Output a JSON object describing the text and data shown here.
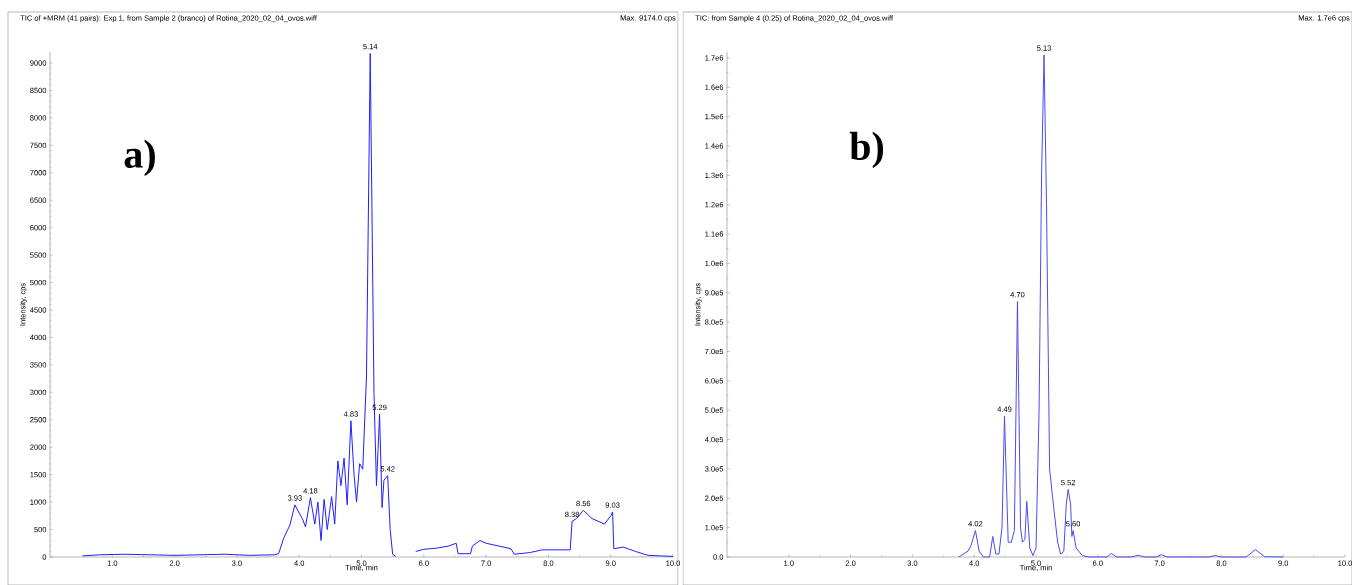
{
  "chart_data": [
    {
      "type": "line",
      "title": "TIC of +MRM (41 pairs): Exp 1, from Sample 2 (branco) of Rotina_2020_02_04_ovos.wiff",
      "xlabel": "Time, min",
      "ylabel": "Intensity, cps",
      "annotations": [
        "Max. 9174.0 cps",
        "a)",
        {
          "text": "3.93",
          "x": 3.93,
          "y": 950
        },
        {
          "text": "4.18",
          "x": 4.18,
          "y": 1080
        },
        {
          "text": "4.83",
          "x": 4.83,
          "y": 2480
        },
        {
          "text": "5.14",
          "x": 5.14,
          "y": 9174
        },
        {
          "text": "5.29",
          "x": 5.29,
          "y": 2600
        },
        {
          "text": "5.42",
          "x": 5.42,
          "y": 1480
        },
        {
          "text": "8.38",
          "x": 8.38,
          "y": 650
        },
        {
          "text": "8.56",
          "x": 8.56,
          "y": 850
        },
        {
          "text": "9.03",
          "x": 9.03,
          "y": 820
        }
      ],
      "x": [
        0.52,
        0.8,
        1.2,
        1.6,
        2.0,
        2.4,
        2.8,
        3.2,
        3.6,
        3.67,
        3.75,
        3.85,
        3.93,
        4.0,
        4.05,
        4.1,
        4.18,
        4.25,
        4.3,
        4.35,
        4.4,
        4.45,
        4.52,
        4.57,
        4.62,
        4.67,
        4.72,
        4.77,
        4.83,
        4.88,
        4.92,
        4.97,
        5.02,
        5.08,
        5.14,
        5.2,
        5.24,
        5.29,
        5.33,
        5.36,
        5.42,
        5.46,
        5.5,
        5.55,
        5.7,
        5.87,
        6.0,
        6.2,
        6.4,
        6.52,
        6.55,
        6.75,
        6.78,
        6.9,
        7.0,
        7.2,
        7.4,
        7.45,
        7.7,
        7.9,
        8.35,
        8.38,
        8.45,
        8.56,
        8.7,
        8.8,
        8.9,
        9.0,
        9.03,
        9.05,
        9.2,
        9.4,
        9.6,
        9.8,
        10.0
      ],
      "values": [
        20,
        40,
        50,
        40,
        30,
        40,
        50,
        30,
        40,
        60,
        340,
        580,
        950,
        800,
        700,
        550,
        1080,
        600,
        1000,
        300,
        1050,
        500,
        1100,
        600,
        1750,
        1300,
        1800,
        950,
        2480,
        1500,
        1000,
        1700,
        1600,
        3300,
        9174,
        3000,
        1300,
        2600,
        900,
        1400,
        1480,
        500,
        50,
        10,
        null,
        100,
        140,
        160,
        200,
        250,
        60,
        60,
        200,
        300,
        250,
        200,
        150,
        50,
        80,
        130,
        130,
        650,
        700,
        850,
        700,
        650,
        600,
        750,
        820,
        150,
        180,
        100,
        30,
        20,
        10
      ],
      "color": "#1f1fff",
      "xlim": [
        0,
        10
      ],
      "ylim": [
        0,
        9200
      ],
      "xticks": [
        {
          "value": 1,
          "label": "1.0"
        },
        {
          "value": 2,
          "label": "2.0"
        },
        {
          "value": 3,
          "label": "3.0"
        },
        {
          "value": 4,
          "label": "4.0"
        },
        {
          "value": 5,
          "label": "5.0"
        },
        {
          "value": 6,
          "label": "6.0"
        },
        {
          "value": 7,
          "label": "7.0"
        },
        {
          "value": 8,
          "label": "8.0"
        },
        {
          "value": 9,
          "label": "9.0"
        },
        {
          "value": 10,
          "label": "10.0"
        }
      ],
      "yticks": [
        0,
        500,
        1000,
        1500,
        2000,
        2500,
        3000,
        3500,
        4000,
        4500,
        5000,
        5500,
        6000,
        6500,
        7000,
        7500,
        8000,
        8500,
        9000
      ]
    },
    {
      "type": "line",
      "title": "TIC: from Sample 4 (0.25) of Rotina_2020_02_04_ovos.wiff",
      "xlabel": "Time, min",
      "ylabel": "Intensity, cps",
      "annotations": [
        "Max. 1.7e6 cps",
        "b)",
        {
          "text": "4.02",
          "x": 4.02,
          "y": 90000
        },
        {
          "text": "4.49",
          "x": 4.49,
          "y": 480000
        },
        {
          "text": "4.70",
          "x": 4.7,
          "y": 870000
        },
        {
          "text": "5.13",
          "x": 5.13,
          "y": 1710000
        },
        {
          "text": "5.52",
          "x": 5.52,
          "y": 230000
        },
        {
          "text": "5.60",
          "x": 5.6,
          "y": 90000
        }
      ],
      "x": [
        3.75,
        3.9,
        3.95,
        4.02,
        4.08,
        4.15,
        4.25,
        4.3,
        4.35,
        4.4,
        4.45,
        4.49,
        4.55,
        4.6,
        4.65,
        4.7,
        4.75,
        4.78,
        4.82,
        4.85,
        4.9,
        4.95,
        5.0,
        5.05,
        5.09,
        5.13,
        5.17,
        5.22,
        5.27,
        5.35,
        5.4,
        5.45,
        5.49,
        5.52,
        5.56,
        5.58,
        5.6,
        5.65,
        5.75,
        5.85,
        6.15,
        6.22,
        6.3,
        6.55,
        6.65,
        6.75,
        6.95,
        7.03,
        7.12,
        7.8,
        7.9,
        8.0,
        8.4,
        8.55,
        8.7,
        9.0
      ],
      "values": [
        0,
        20000,
        40000,
        90000,
        20000,
        0,
        0,
        70000,
        10000,
        10000,
        100000,
        480000,
        50000,
        50000,
        90000,
        870000,
        100000,
        50000,
        60000,
        190000,
        30000,
        5000,
        30000,
        500000,
        1300000,
        1710000,
        1200000,
        300000,
        200000,
        50000,
        10000,
        20000,
        180000,
        230000,
        180000,
        70000,
        90000,
        30000,
        5000,
        0,
        0,
        12000,
        0,
        0,
        6000,
        0,
        0,
        8000,
        0,
        0,
        5000,
        0,
        0,
        25000,
        1000,
        0
      ],
      "color": "#4a4af2",
      "xlim": [
        0,
        10
      ],
      "ylim": [
        0,
        1720000
      ],
      "xticks": [
        {
          "value": 1,
          "label": "1.0"
        },
        {
          "value": 2,
          "label": "2.0"
        },
        {
          "value": 3,
          "label": "3.0"
        },
        {
          "value": 4,
          "label": "4.0"
        },
        {
          "value": 5,
          "label": "5.0"
        },
        {
          "value": 6,
          "label": "6.0"
        },
        {
          "value": 7,
          "label": "7.0"
        },
        {
          "value": 8,
          "label": "8.0"
        },
        {
          "value": 9,
          "label": "9.0"
        },
        {
          "value": 10,
          "label": "10.0"
        }
      ],
      "yticks": [
        {
          "value": 0,
          "label": "0.0"
        },
        {
          "value": 100000,
          "label": "1.0e5"
        },
        {
          "value": 200000,
          "label": "2.0e5"
        },
        {
          "value": 300000,
          "label": "3.0e5"
        },
        {
          "value": 400000,
          "label": "4.0e5"
        },
        {
          "value": 500000,
          "label": "5.0e5"
        },
        {
          "value": 600000,
          "label": "6.0e5"
        },
        {
          "value": 700000,
          "label": "7.0e5"
        },
        {
          "value": 800000,
          "label": "8.0e5"
        },
        {
          "value": 900000,
          "label": "9.0e5"
        },
        {
          "value": 1000000,
          "label": "1.0e6"
        },
        {
          "value": 1100000,
          "label": "1.1e6"
        },
        {
          "value": 1200000,
          "label": "1.2e6"
        },
        {
          "value": 1300000,
          "label": "1.3e6"
        },
        {
          "value": 1400000,
          "label": "1.4e6"
        },
        {
          "value": 1500000,
          "label": "1.5e6"
        },
        {
          "value": 1600000,
          "label": "1.6e6"
        },
        {
          "value": 1700000,
          "label": "1.7e6"
        }
      ]
    }
  ]
}
